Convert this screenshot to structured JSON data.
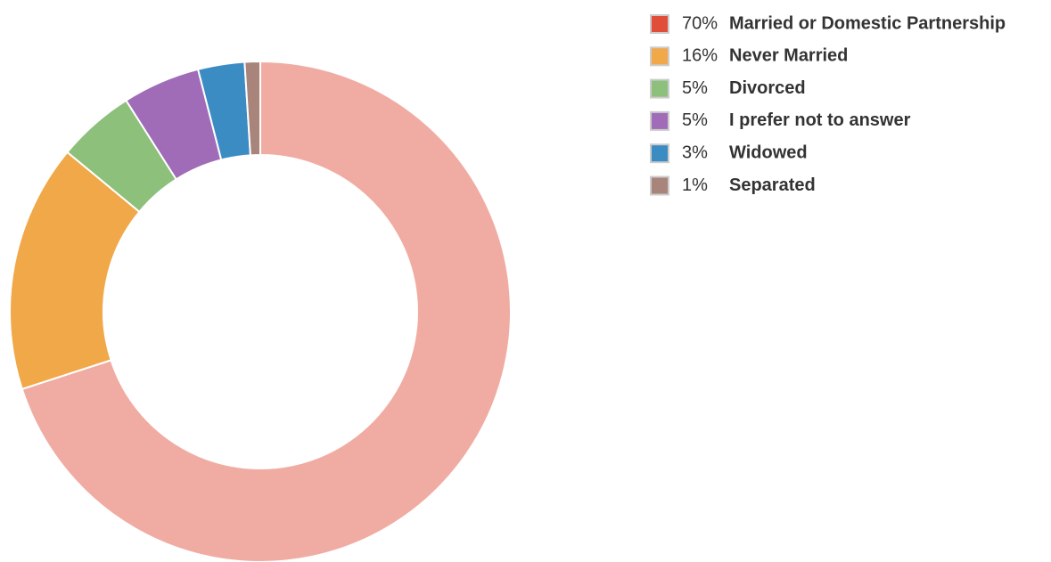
{
  "chart_data": {
    "type": "donut",
    "categories": [
      "Married or Domestic Partnership",
      "Never Married",
      "Divorced",
      "I prefer not to answer",
      "Widowed",
      "Separated"
    ],
    "values": [
      70,
      16,
      5,
      5,
      3,
      1
    ],
    "value_labels": [
      "70%",
      "16%",
      "5%",
      "5%",
      "3%",
      "1%"
    ],
    "colors": [
      "#e04e39",
      "#f0a848",
      "#8dc07a",
      "#a06cb8",
      "#3c8cc4",
      "#a8847a"
    ],
    "legend": "top-right"
  }
}
